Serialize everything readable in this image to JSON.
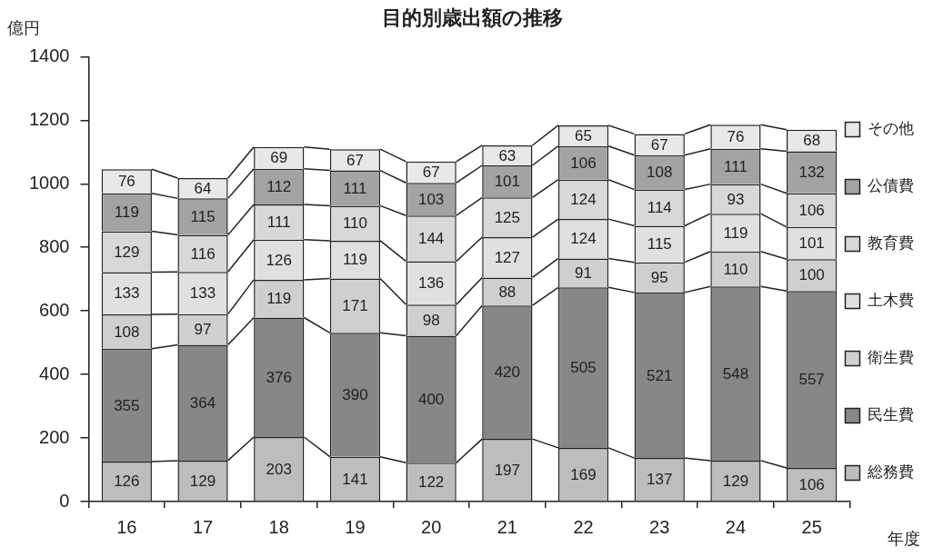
{
  "chart_data": {
    "type": "bar",
    "title": "目的別歳出額の推移",
    "ylabel": "億円",
    "xlabel": "年度",
    "categories": [
      "16",
      "17",
      "18",
      "19",
      "20",
      "21",
      "22",
      "23",
      "24",
      "25"
    ],
    "stacked": true,
    "series": [
      {
        "name": "総務費",
        "color": "#bdbdbd",
        "values": [
          126,
          129,
          203,
          141,
          122,
          197,
          169,
          137,
          129,
          106
        ]
      },
      {
        "name": "民生費",
        "color": "#878787",
        "values": [
          355,
          364,
          376,
          390,
          400,
          420,
          505,
          521,
          548,
          557
        ]
      },
      {
        "name": "衛生費",
        "color": "#cfcfcf",
        "values": [
          108,
          97,
          119,
          171,
          98,
          88,
          91,
          95,
          110,
          100
        ]
      },
      {
        "name": "土木費",
        "color": "#e0e0e0",
        "values": [
          133,
          133,
          126,
          119,
          136,
          127,
          124,
          115,
          119,
          101
        ]
      },
      {
        "name": "教育費",
        "color": "#d8d8d8",
        "values": [
          129,
          116,
          111,
          110,
          144,
          125,
          124,
          114,
          93,
          106
        ]
      },
      {
        "name": "公債費",
        "color": "#a3a3a3",
        "values": [
          119,
          115,
          112,
          111,
          103,
          101,
          106,
          108,
          111,
          132
        ]
      },
      {
        "name": "その他",
        "color": "#e8e8e8",
        "values": [
          76,
          64,
          69,
          67,
          67,
          63,
          65,
          67,
          76,
          68
        ]
      }
    ],
    "ylim": [
      0,
      1400
    ],
    "yticks": [
      0,
      200,
      400,
      600,
      800,
      1000,
      1200,
      1400
    ],
    "grid": false,
    "legend": "right",
    "data_labels": true
  }
}
